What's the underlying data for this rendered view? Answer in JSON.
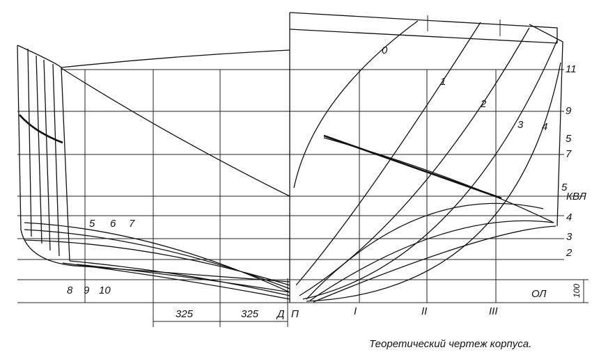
{
  "caption": "Теоретический чертеж корпуса.",
  "right_frames": [
    "0",
    "1",
    "2",
    "3",
    "4"
  ],
  "waterlines": [
    "11",
    "9",
    "5",
    "7",
    "5",
    "КВЛ",
    "4",
    "3",
    "2",
    "ОЛ"
  ],
  "left_frames_upper": [
    "5",
    "6",
    "7"
  ],
  "left_frames_lower": [
    "8",
    "9",
    "10"
  ],
  "dimensions": [
    "325",
    "325",
    "100"
  ],
  "bottom_labels": [
    "Д",
    "П",
    "I",
    "II",
    "III"
  ]
}
